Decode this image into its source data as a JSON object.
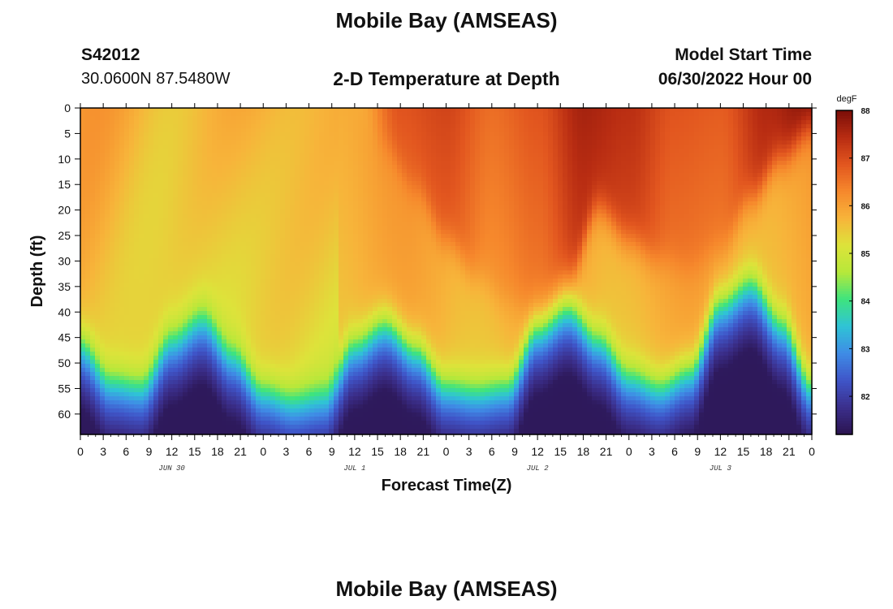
{
  "figure": {
    "title": "Mobile Bay (AMSEAS)",
    "station_id": "S42012",
    "coordinates": "30.0600N  87.5480W",
    "subtitle": "2-D Temperature at Depth",
    "model_start_label": "Model Start Time",
    "model_start_value": "06/30/2022 Hour 00",
    "footer_title": "Mobile Bay (AMSEAS)"
  },
  "chart_data": {
    "type": "heatmap",
    "title": "2-D Temperature at Depth",
    "xlabel": "Forecast Time(Z)",
    "ylabel": "Depth (ft)",
    "x_range_hours": [
      0,
      72
    ],
    "ylim": [
      0,
      64
    ],
    "y_inverted": true,
    "x_ticks": [
      {
        "h": 0,
        "label": "0"
      },
      {
        "h": 3,
        "label": "3"
      },
      {
        "h": 6,
        "label": "6"
      },
      {
        "h": 9,
        "label": "9"
      },
      {
        "h": 12,
        "label": "12"
      },
      {
        "h": 15,
        "label": "15"
      },
      {
        "h": 18,
        "label": "18"
      },
      {
        "h": 21,
        "label": "21"
      },
      {
        "h": 24,
        "label": "0"
      },
      {
        "h": 27,
        "label": "3"
      },
      {
        "h": 30,
        "label": "6"
      },
      {
        "h": 33,
        "label": "9"
      },
      {
        "h": 36,
        "label": "12"
      },
      {
        "h": 39,
        "label": "15"
      },
      {
        "h": 42,
        "label": "18"
      },
      {
        "h": 45,
        "label": "21"
      },
      {
        "h": 48,
        "label": "0"
      },
      {
        "h": 51,
        "label": "3"
      },
      {
        "h": 54,
        "label": "6"
      },
      {
        "h": 57,
        "label": "9"
      },
      {
        "h": 60,
        "label": "12"
      },
      {
        "h": 63,
        "label": "15"
      },
      {
        "h": 66,
        "label": "18"
      },
      {
        "h": 69,
        "label": "21"
      },
      {
        "h": 72,
        "label": "0"
      },
      {
        "h": 75,
        "label": "3"
      },
      {
        "h": 78,
        "label": "6"
      },
      {
        "h": 81,
        "label": "9"
      },
      {
        "h": 84,
        "label": "12"
      },
      {
        "h": 87,
        "label": "15"
      },
      {
        "h": 90,
        "label": "18"
      },
      {
        "h": 93,
        "label": "21"
      },
      {
        "h": 96,
        "label": "0"
      }
    ],
    "date_labels": [
      {
        "h": 12,
        "label": "JUN 30"
      },
      {
        "h": 36,
        "label": "JUL 1"
      },
      {
        "h": 60,
        "label": "JUL 2"
      },
      {
        "h": 84,
        "label": "JUL 3"
      }
    ],
    "y_ticks": [
      0,
      5,
      10,
      15,
      20,
      25,
      30,
      35,
      40,
      45,
      50,
      55,
      60
    ],
    "colorbar": {
      "unit": "degF",
      "range": [
        81.2,
        88.0
      ],
      "ticks": [
        82,
        83,
        84,
        85,
        86,
        87,
        88
      ],
      "colors": [
        "#2b1450",
        "#3b2f8c",
        "#3f55c8",
        "#3f8ce6",
        "#2fc3d6",
        "#3ee47e",
        "#b6e83a",
        "#dde33a",
        "#f7b43a",
        "#f6882c",
        "#e2561f",
        "#b82c12",
        "#7a0e08"
      ]
    },
    "bottom_layer": {
      "description_values": "mixed-layer bottom depth (ft) vs forecast hour",
      "hours": [
        0,
        4,
        8,
        12,
        16,
        20,
        24,
        28,
        32,
        36,
        40,
        44,
        48,
        52,
        56,
        60,
        64,
        68,
        72,
        76,
        80,
        84,
        88,
        92,
        96
      ],
      "depth_ft": [
        46,
        53,
        54,
        45,
        41,
        48,
        55,
        57,
        56,
        46,
        42,
        47,
        54,
        55,
        54,
        43,
        39,
        45,
        52,
        54,
        51,
        38,
        34,
        42,
        54
      ]
    },
    "warm_front": {
      "description_values": "depth (ft) of 86.5 degF isotherm boundary vs forecast hour",
      "hours": [
        36,
        40,
        44,
        48,
        52,
        56,
        60,
        64,
        68,
        72,
        76,
        80,
        84,
        88,
        92,
        96
      ],
      "depth_ft": [
        0,
        8,
        16,
        26,
        33,
        38,
        40,
        34,
        20,
        26,
        30,
        32,
        28,
        18,
        10,
        4
      ]
    },
    "surface_temps": {
      "hours": [
        0,
        12,
        24,
        36,
        42,
        48,
        54,
        60,
        66,
        72,
        78,
        84,
        90,
        96
      ],
      "temp_f": [
        86.1,
        85.6,
        85.8,
        85.7,
        86.9,
        87.1,
        86.6,
        86.9,
        87.6,
        87.4,
        86.9,
        86.8,
        87.5,
        87.9
      ]
    }
  }
}
